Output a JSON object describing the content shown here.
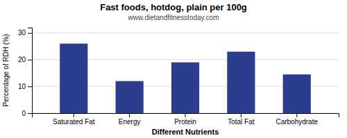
{
  "chart_data": {
    "type": "bar",
    "title": "Fast foods, hotdog, plain per 100g",
    "subtitle": "www.dietandfitnesstoday.com",
    "xlabel": "Different Nutrients",
    "ylabel": "Percentage of RDH (%)",
    "categories": [
      "Saturated Fat",
      "Energy",
      "Protein",
      "Total Fat",
      "Carbohydrate"
    ],
    "values": [
      26,
      12,
      19,
      23,
      14.5
    ],
    "color": "#2d3d8e",
    "ylim": [
      0,
      32
    ],
    "yticks": [
      0,
      10,
      20,
      30
    ],
    "grid": true
  }
}
